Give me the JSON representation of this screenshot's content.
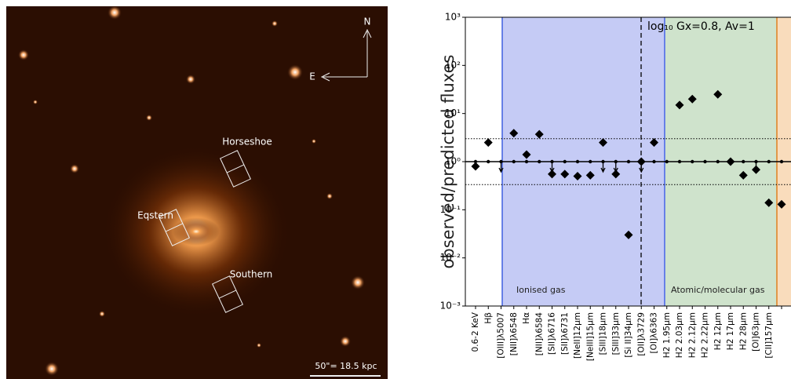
{
  "image": {
    "compass": [
      "N",
      "E"
    ],
    "regions": [
      "Horseshoe",
      "Eqstern",
      "Southern"
    ],
    "scale_bar": "50\"= 18.5 kpc"
  },
  "chart_data": {
    "type": "scatter",
    "log_scale": "y",
    "ylabel": "observed/predicted fluxes",
    "annotation": "log₁₀ Gx=0.8, Av=1",
    "categories": [
      "0.6-2 KeV",
      "Hβ",
      "[OIII]λ5007",
      "[NII]λ6548",
      "Hα",
      "[NII]λ6584",
      "[SII]λ6716",
      "[SII]λ6731",
      "[NeII]12μm",
      "[NeIII]15μm",
      "[SIII]18μm",
      "[SIII]33μm",
      "[Si II]34μm",
      "[OII]λ3729",
      "[OI]λ6363",
      "H2 1.95μm",
      "H2 2.03μm",
      "H2 2.12μm",
      "H2 2.22μm",
      "H2 12μm",
      "H2 17μm",
      "H2 28μm",
      "[OI]63μm",
      "[CII]157μm",
      null
    ],
    "values": [
      0.8,
      2.5,
      null,
      3.9,
      1.4,
      3.7,
      0.55,
      0.55,
      0.5,
      0.52,
      2.5,
      0.55,
      0.03,
      1.0,
      2.5,
      null,
      15,
      20,
      null,
      25,
      1.0,
      0.52,
      0.68,
      0.14,
      0.13
    ],
    "upper_limits": [
      false,
      false,
      true,
      false,
      false,
      false,
      true,
      false,
      false,
      false,
      true,
      true,
      false,
      true,
      false,
      false,
      false,
      false,
      false,
      false,
      false,
      false,
      true,
      false,
      false
    ],
    "reference": 1,
    "bounds": [
      0.333,
      3
    ],
    "color": "#000000",
    "region_labels": [
      "Ionised gas",
      "Atomic/molecular gas"
    ],
    "ylim": [
      0.001,
      1000
    ],
    "yticks": [
      {
        "value": 0.001,
        "label": "10⁻³"
      },
      {
        "value": 0.01,
        "label": "10⁻²"
      },
      {
        "value": 0.1,
        "label": "10⁻¹"
      },
      {
        "value": 1,
        "label": "10⁰"
      },
      {
        "value": 10,
        "label": "10¹"
      },
      {
        "value": 100,
        "label": "10²"
      },
      {
        "value": 1000,
        "label": "10³"
      }
    ]
  }
}
